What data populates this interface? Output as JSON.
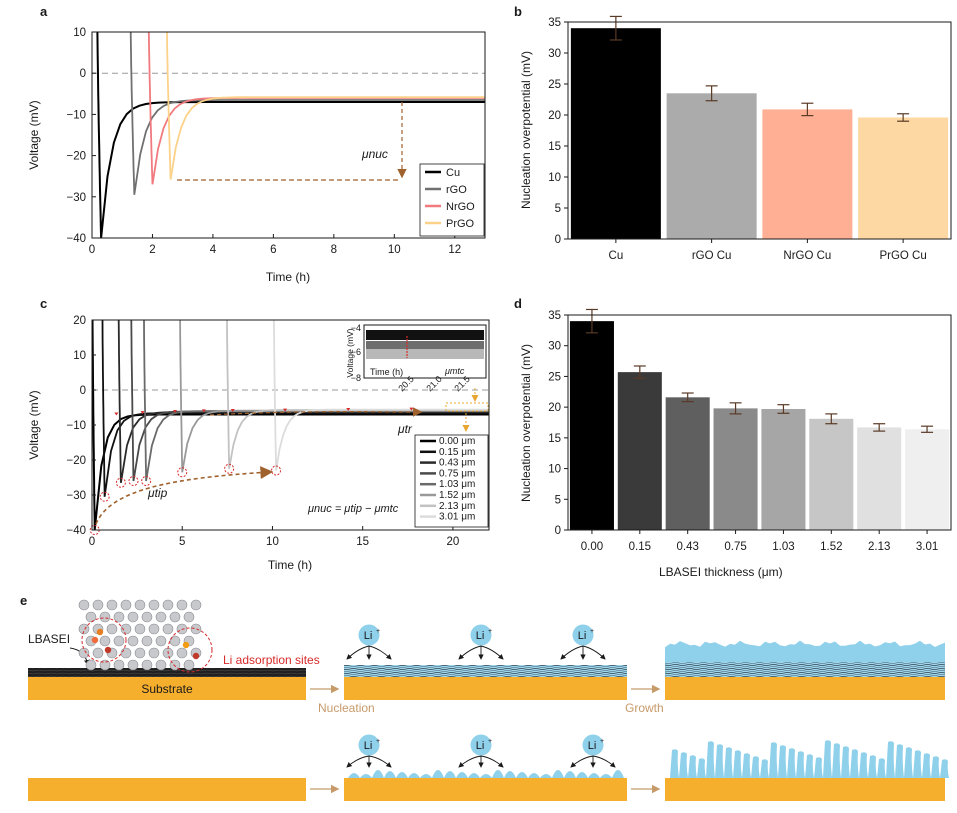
{
  "panels": {
    "a": "a",
    "b": "b",
    "c": "c",
    "d": "d",
    "e": "e"
  },
  "chart_data": [
    {
      "id": "a",
      "type": "line",
      "xlabel": "Time (h)",
      "ylabel": "Voltage (mV)",
      "xlim": [
        0,
        13
      ],
      "ylim": [
        -40,
        10
      ],
      "xticks": [
        "0",
        "2",
        "4",
        "6",
        "8",
        "10",
        "12"
      ],
      "yticks": [
        "10",
        "0",
        "−10",
        "−20",
        "−30",
        "−40"
      ],
      "annotation": "μnuc",
      "series": [
        {
          "name": "Cu",
          "color": "#000000",
          "nucleation_time": 0.3,
          "tip": -40,
          "plateau": -7.0
        },
        {
          "name": "rGO",
          "color": "#707070",
          "nucleation_time": 1.4,
          "tip": -29.5,
          "plateau": -6.5
        },
        {
          "name": "NrGO",
          "color": "#f07a7e",
          "nucleation_time": 2.0,
          "tip": -27,
          "plateau": -6.0
        },
        {
          "name": "PrGO",
          "color": "#fcd188",
          "nucleation_time": 2.6,
          "tip": -25.8,
          "plateau": -5.8
        }
      ]
    },
    {
      "id": "b",
      "type": "bar",
      "ylabel": "Nucleation overpotential (mV)",
      "ylim": [
        0,
        35
      ],
      "yticks": [
        "0",
        "5",
        "10",
        "15",
        "20",
        "25",
        "30",
        "35"
      ],
      "categories": [
        "Cu",
        "rGO Cu",
        "NrGO Cu",
        "PrGO Cu"
      ],
      "values": [
        34.0,
        23.5,
        20.9,
        19.6
      ],
      "errors": [
        1.9,
        1.2,
        1.0,
        0.6
      ],
      "colors": [
        "#000000",
        "#ababab",
        "#ffaf93",
        "#fdd8a3"
      ]
    },
    {
      "id": "c",
      "type": "line",
      "xlabel": "Time (h)",
      "ylabel": "Voltage (mV)",
      "xlim": [
        0,
        22
      ],
      "ylim": [
        -40,
        20
      ],
      "xticks": [
        "0",
        "5",
        "10",
        "15",
        "20"
      ],
      "yticks": [
        "20",
        "10",
        "0",
        "−10",
        "−20",
        "−30",
        "−40"
      ],
      "labels": {
        "tip": "μtip",
        "tr": "μtr",
        "equation": "μnuc = μtip − μmtc"
      },
      "inset": {
        "xlabel": "Time (h)",
        "ylabel": "Voltage (mV)",
        "xticks": [
          "20.5",
          "21.0",
          "21.5"
        ],
        "yticks": [
          "−4",
          "−6",
          "−8"
        ],
        "label": "μmtc"
      },
      "series": [
        {
          "name": "0.00 μm",
          "color": "#000000",
          "nucleation_time": 0.15,
          "tip": -40,
          "plateau": -7.0
        },
        {
          "name": "0.15 μm",
          "color": "#101010",
          "nucleation_time": 0.7,
          "tip": -30.5,
          "plateau": -6.6
        },
        {
          "name": "0.43 μm",
          "color": "#2a2a2a",
          "nucleation_time": 1.6,
          "tip": -26.5,
          "plateau": -6.3
        },
        {
          "name": "0.75 μm",
          "color": "#4a4a4a",
          "nucleation_time": 2.3,
          "tip": -26.0,
          "plateau": -6.1
        },
        {
          "name": "1.03 μm",
          "color": "#6a6a6a",
          "nucleation_time": 3.0,
          "tip": -26.0,
          "plateau": -6.0
        },
        {
          "name": "1.52 μm",
          "color": "#999999",
          "nucleation_time": 5.0,
          "tip": -23.5,
          "plateau": -5.9
        },
        {
          "name": "2.13 μm",
          "color": "#c2c2c2",
          "nucleation_time": 7.6,
          "tip": -22.5,
          "plateau": -5.7
        },
        {
          "name": "3.01 μm",
          "color": "#dcdcdc",
          "nucleation_time": 10.2,
          "tip": -23.0,
          "plateau": -5.6
        }
      ]
    },
    {
      "id": "d",
      "type": "bar",
      "xlabel": "LBASEI thickness (μm)",
      "ylabel": "Nucleation overpotential (mV)",
      "ylim": [
        0,
        35
      ],
      "yticks": [
        "0",
        "5",
        "10",
        "15",
        "20",
        "25",
        "30",
        "35"
      ],
      "categories": [
        "0.00",
        "0.15",
        "0.43",
        "0.75",
        "1.03",
        "1.52",
        "2.13",
        "3.01"
      ],
      "values": [
        34.0,
        25.7,
        21.6,
        19.8,
        19.7,
        18.1,
        16.7,
        16.4
      ],
      "errors": [
        1.9,
        1.0,
        0.7,
        0.9,
        0.7,
        0.8,
        0.6,
        0.5
      ],
      "colors": [
        "#000000",
        "#3a3a3a",
        "#5f5f5f",
        "#8a8a8a",
        "#a6a6a6",
        "#c6c6c6",
        "#e0e0e0",
        "#efefef"
      ]
    }
  ],
  "schematic": {
    "lbasei": "LBASEI",
    "li_sites": "Li adsorption sites",
    "substrate": "Substrate",
    "nucleation": "Nucleation",
    "growth": "Growth",
    "li_ion": "Li",
    "li_sup": "+"
  },
  "colors": {
    "substrate": "#f6ae2d",
    "lithium": "#8fd0ea",
    "arrow_brown": "#a0622d",
    "label_red": "#d72a2a",
    "step_text": "#c79a6a"
  }
}
